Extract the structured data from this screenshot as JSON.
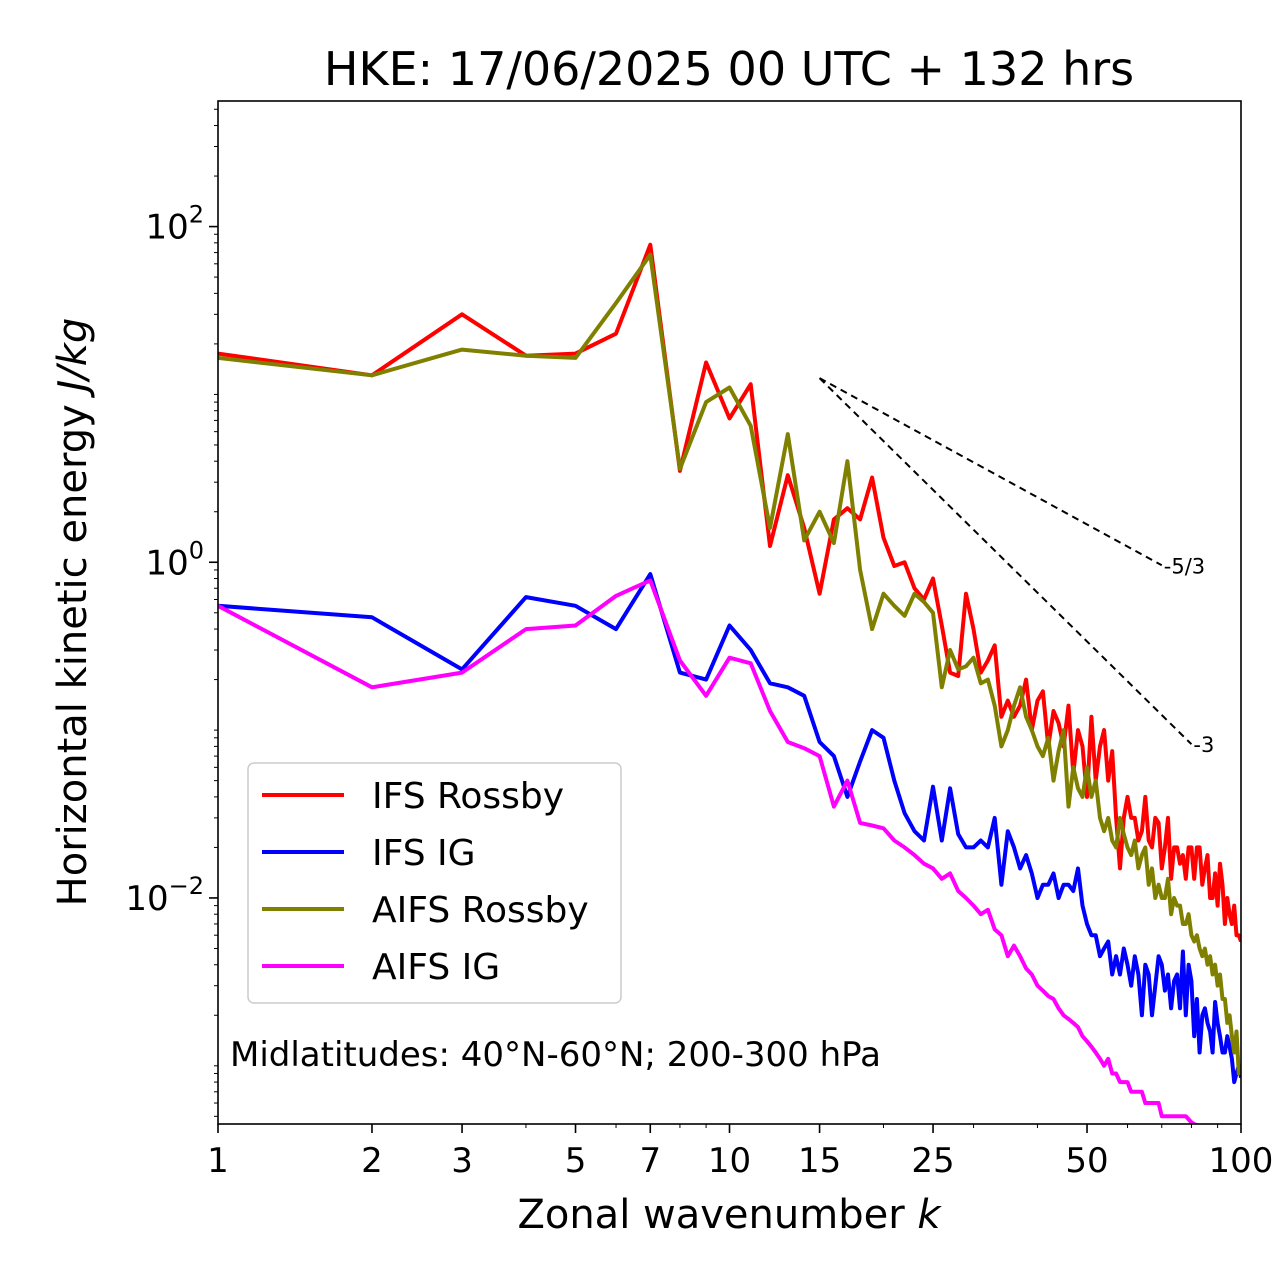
{
  "chart_data": {
    "type": "line",
    "title": "HKE: 17/06/2025 00 UTC + 132 hrs",
    "xlabel": "Zonal wavenumber",
    "xlabel_symbol": "k",
    "ylabel": "Horizontal kinetic energy",
    "ylabel_units": "J/kg",
    "xscale": "log",
    "yscale": "log",
    "xlim": [
      1,
      100
    ],
    "ylim": [
      0.00045,
      560
    ],
    "x_ticks": [
      1,
      2,
      3,
      5,
      7,
      10,
      15,
      25,
      50,
      100
    ],
    "y_ticks": [
      {
        "value": 0.01,
        "base": "10",
        "exp": "−2"
      },
      {
        "value": 1,
        "base": "10",
        "exp": "0"
      },
      {
        "value": 100,
        "base": "10",
        "exp": "2"
      }
    ],
    "grid": false,
    "legend_position": "lower-left",
    "annotation": "Midlatitudes: 40°N-60°N; 200-300 hPa",
    "reference_slopes": [
      {
        "label": "-5/3",
        "slope": -1.6667,
        "x_start": 15,
        "x_end": 70,
        "y_start": 12.5
      },
      {
        "label": "-3",
        "slope": -3,
        "x_start": 15,
        "x_end": 80,
        "y_start": 12.5
      }
    ],
    "series": [
      {
        "name": "IFS Rossby",
        "color": "#ff0000",
        "x": [
          1,
          2,
          3,
          4,
          5,
          6,
          7,
          8,
          9,
          10,
          11,
          12,
          13,
          14,
          15,
          16,
          17,
          18,
          19,
          20,
          21,
          22,
          23,
          24,
          25,
          26,
          27,
          28,
          29,
          30,
          31,
          32,
          33,
          34,
          35,
          36,
          37,
          38,
          39,
          40,
          41,
          42,
          43,
          44,
          45,
          46,
          47,
          48,
          49,
          50,
          51,
          52,
          53,
          54,
          55,
          56,
          57,
          58,
          59,
          60,
          61,
          62,
          63,
          64,
          65,
          66,
          67,
          68,
          69,
          70,
          71,
          72,
          73,
          74,
          75,
          76,
          77,
          78,
          79,
          80,
          81,
          82,
          83,
          84,
          85,
          86,
          87,
          88,
          89,
          90,
          91,
          92,
          93,
          94,
          95,
          96,
          97,
          98,
          99,
          100
        ],
        "y": [
          17.5,
          13,
          30,
          17,
          17.5,
          23,
          78,
          3.5,
          15.5,
          7.2,
          11.5,
          1.25,
          3.3,
          1.6,
          0.65,
          1.8,
          2.1,
          1.8,
          3.2,
          1.4,
          0.95,
          1.0,
          0.7,
          0.6,
          0.8,
          0.42,
          0.22,
          0.21,
          0.65,
          0.4,
          0.22,
          0.26,
          0.32,
          0.12,
          0.15,
          0.12,
          0.14,
          0.2,
          0.1,
          0.15,
          0.17,
          0.08,
          0.13,
          0.11,
          0.08,
          0.14,
          0.055,
          0.1,
          0.08,
          0.04,
          0.12,
          0.05,
          0.08,
          0.1,
          0.05,
          0.075,
          0.03,
          0.015,
          0.03,
          0.04,
          0.03,
          0.03,
          0.022,
          0.025,
          0.04,
          0.022,
          0.02,
          0.03,
          0.028,
          0.015,
          0.02,
          0.03,
          0.013,
          0.02,
          0.02,
          0.016,
          0.018,
          0.013,
          0.02,
          0.02,
          0.013,
          0.02,
          0.02,
          0.012,
          0.015,
          0.018,
          0.01,
          0.01,
          0.014,
          0.009,
          0.016,
          0.012,
          0.007,
          0.01,
          0.008,
          0.007,
          0.009,
          0.006,
          0.006,
          0.0055
        ]
      },
      {
        "name": "IFS IG",
        "color": "#0000ff",
        "x": [
          1,
          2,
          3,
          4,
          5,
          6,
          7,
          8,
          9,
          10,
          11,
          12,
          13,
          14,
          15,
          16,
          17,
          18,
          19,
          20,
          21,
          22,
          23,
          24,
          25,
          26,
          27,
          28,
          29,
          30,
          31,
          32,
          33,
          34,
          35,
          36,
          37,
          38,
          39,
          40,
          41,
          42,
          43,
          44,
          45,
          46,
          47,
          48,
          49,
          50,
          51,
          52,
          53,
          54,
          55,
          56,
          57,
          58,
          59,
          60,
          61,
          62,
          63,
          64,
          65,
          66,
          67,
          68,
          69,
          70,
          71,
          72,
          73,
          74,
          75,
          76,
          77,
          78,
          79,
          80,
          81,
          82,
          83,
          84,
          85,
          86,
          87,
          88,
          89,
          90,
          91,
          92,
          93,
          94,
          95,
          96,
          97,
          98,
          99,
          100
        ],
        "y": [
          0.55,
          0.47,
          0.23,
          0.62,
          0.55,
          0.4,
          0.85,
          0.22,
          0.2,
          0.42,
          0.3,
          0.19,
          0.18,
          0.16,
          0.085,
          0.07,
          0.04,
          0.065,
          0.1,
          0.09,
          0.05,
          0.032,
          0.025,
          0.022,
          0.046,
          0.022,
          0.045,
          0.024,
          0.02,
          0.02,
          0.022,
          0.02,
          0.03,
          0.012,
          0.025,
          0.02,
          0.015,
          0.018,
          0.014,
          0.01,
          0.012,
          0.012,
          0.014,
          0.01,
          0.012,
          0.012,
          0.011,
          0.015,
          0.009,
          0.007,
          0.006,
          0.006,
          0.0045,
          0.005,
          0.0055,
          0.0035,
          0.0045,
          0.0035,
          0.005,
          0.004,
          0.003,
          0.0045,
          0.0035,
          0.002,
          0.004,
          0.0035,
          0.002,
          0.003,
          0.0045,
          0.004,
          0.0028,
          0.0035,
          0.0022,
          0.0032,
          0.0035,
          0.0022,
          0.0048,
          0.002,
          0.004,
          0.0032,
          0.0015,
          0.0025,
          0.0012,
          0.002,
          0.0022,
          0.0018,
          0.0016,
          0.0012,
          0.0024,
          0.0018,
          0.0015,
          0.0012,
          0.0012,
          0.0015,
          0.0013,
          0.0011,
          0.0008,
          0.0009,
          0.001,
          0.00085
        ]
      },
      {
        "name": "AIFS Rossby",
        "color": "#808000",
        "x": [
          1,
          2,
          3,
          4,
          5,
          6,
          7,
          8,
          9,
          10,
          11,
          12,
          13,
          14,
          15,
          16,
          17,
          18,
          19,
          20,
          21,
          22,
          23,
          24,
          25,
          26,
          27,
          28,
          29,
          30,
          31,
          32,
          33,
          34,
          35,
          36,
          37,
          38,
          39,
          40,
          41,
          42,
          43,
          44,
          45,
          46,
          47,
          48,
          49,
          50,
          51,
          52,
          53,
          54,
          55,
          56,
          57,
          58,
          59,
          60,
          61,
          62,
          63,
          64,
          65,
          66,
          67,
          68,
          69,
          70,
          71,
          72,
          73,
          74,
          75,
          76,
          77,
          78,
          79,
          80,
          81,
          82,
          83,
          84,
          85,
          86,
          87,
          88,
          89,
          90,
          91,
          92,
          93,
          94,
          95,
          96,
          97,
          98,
          99,
          100
        ],
        "y": [
          16.5,
          13,
          18.5,
          17,
          16.5,
          35,
          68,
          3.6,
          9,
          11,
          6.5,
          1.6,
          5.8,
          1.35,
          2,
          1.3,
          4,
          0.9,
          0.4,
          0.65,
          0.55,
          0.48,
          0.65,
          0.58,
          0.5,
          0.18,
          0.3,
          0.23,
          0.24,
          0.27,
          0.19,
          0.2,
          0.14,
          0.08,
          0.1,
          0.14,
          0.18,
          0.12,
          0.1,
          0.08,
          0.07,
          0.09,
          0.05,
          0.075,
          0.1,
          0.035,
          0.06,
          0.045,
          0.04,
          0.06,
          0.04,
          0.05,
          0.03,
          0.025,
          0.03,
          0.022,
          0.02,
          0.03,
          0.024,
          0.02,
          0.018,
          0.022,
          0.015,
          0.018,
          0.02,
          0.012,
          0.015,
          0.01,
          0.012,
          0.01,
          0.01,
          0.013,
          0.008,
          0.01,
          0.009,
          0.009,
          0.007,
          0.007,
          0.008,
          0.006,
          0.0055,
          0.006,
          0.005,
          0.0045,
          0.005,
          0.004,
          0.0045,
          0.0035,
          0.004,
          0.003,
          0.0035,
          0.0025,
          0.0025,
          0.0018,
          0.002,
          0.0015,
          0.0012,
          0.0016,
          0.0009,
          0.001
        ]
      },
      {
        "name": "AIFS IG",
        "color": "#ff00ff",
        "x": [
          1,
          2,
          3,
          4,
          5,
          6,
          7,
          8,
          9,
          10,
          11,
          12,
          13,
          14,
          15,
          16,
          17,
          18,
          19,
          20,
          21,
          22,
          23,
          24,
          25,
          26,
          27,
          28,
          29,
          30,
          31,
          32,
          33,
          34,
          35,
          36,
          37,
          38,
          39,
          40,
          41,
          42,
          43,
          44,
          45,
          46,
          47,
          48,
          49,
          50,
          51,
          52,
          53,
          54,
          55,
          56,
          57,
          58,
          59,
          60,
          61,
          62,
          63,
          64,
          65,
          66,
          67,
          68,
          69,
          70,
          71,
          72,
          73,
          74,
          75,
          76,
          77,
          78,
          79,
          80,
          81,
          82,
          83,
          84,
          85,
          86,
          87,
          88,
          89,
          90,
          91,
          92,
          93,
          94,
          95,
          96,
          97,
          98,
          99,
          100
        ],
        "y": [
          0.55,
          0.18,
          0.22,
          0.4,
          0.42,
          0.63,
          0.78,
          0.26,
          0.16,
          0.27,
          0.25,
          0.13,
          0.085,
          0.078,
          0.07,
          0.035,
          0.05,
          0.028,
          0.027,
          0.026,
          0.022,
          0.02,
          0.018,
          0.016,
          0.015,
          0.013,
          0.014,
          0.011,
          0.01,
          0.009,
          0.008,
          0.0085,
          0.0065,
          0.006,
          0.0045,
          0.0052,
          0.0045,
          0.0038,
          0.0035,
          0.003,
          0.0028,
          0.0026,
          0.0025,
          0.0022,
          0.002,
          0.0019,
          0.0018,
          0.0017,
          0.0015,
          0.0014,
          0.0013,
          0.0012,
          0.0011,
          0.001,
          0.0011,
          0.0009,
          0.0009,
          0.0008,
          0.0008,
          0.0008,
          0.0007,
          0.0007,
          0.0007,
          0.0007,
          0.0006,
          0.0006,
          0.0006,
          0.0006,
          0.0006,
          0.0005,
          0.0005,
          0.0005,
          0.0005,
          0.0005,
          0.0005,
          0.0005,
          0.0005,
          0.0005,
          0.00048,
          0.00046,
          0.00045,
          0.00044,
          0.00043,
          0.00042,
          0.00041,
          0.0004,
          0.00039,
          0.00038,
          0.00037,
          0.00036,
          0.00035,
          0.00034,
          0.00033,
          0.00032,
          0.00031,
          0.0003,
          0.00029,
          0.00028,
          0.00027,
          0.00026
        ]
      }
    ]
  }
}
